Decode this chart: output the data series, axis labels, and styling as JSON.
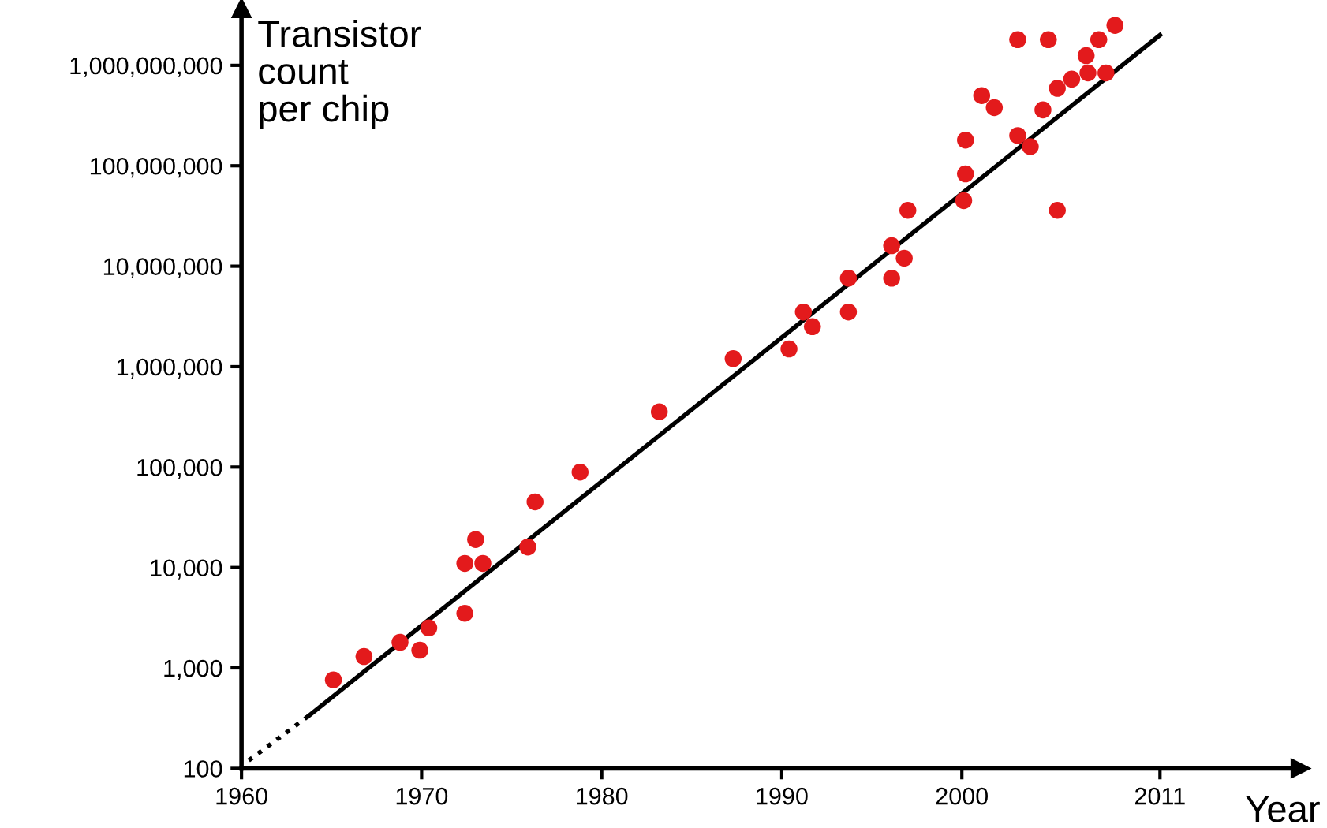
{
  "chart_data": {
    "type": "scatter",
    "xlabel": "Year",
    "ylabel": "Transistor\ncount\nper chip",
    "xlim": [
      1960,
      2018.8
    ],
    "xticks": [
      1960,
      1970,
      1980,
      1990,
      2000,
      2011
    ],
    "ylim": [
      100,
      3700000000
    ],
    "log": true,
    "yticks": [
      100,
      {
        "value": 1000,
        "label": "1,000"
      },
      {
        "value": 10000,
        "label": "10,000"
      },
      {
        "value": 100000,
        "label": "100,000"
      },
      {
        "value": 1000000,
        "label": "1,000,000"
      },
      {
        "value": 10000000,
        "label": "10,000,000"
      },
      {
        "value": 100000000,
        "label": "100,000,000"
      },
      {
        "value": 1000000000,
        "label": "1,000,000,000"
      }
    ],
    "grid": false,
    "legend": false,
    "marker": "circle",
    "series": [
      {
        "color": "#e31a1c",
        "x": [
          1965.1,
          1966.8,
          1968.8,
          1969.9,
          1970.4,
          1972.4,
          1972.4,
          1973.0,
          1973.4,
          1975.9,
          1976.3,
          1978.8,
          1983.2,
          1987.3,
          1990.4,
          1991.2,
          1991.7,
          1993.7,
          1993.7,
          1996.1,
          1996.1,
          1996.8,
          1997.0,
          2000.1,
          2000.2,
          2000.2,
          2001.1,
          2001.8,
          2003.1,
          2004.8,
          2003.1,
          2003.8,
          2004.5,
          2005.3,
          2005.3,
          2006.1,
          2006.9,
          2007.0,
          2007.6,
          2008.0,
          2008.5
        ],
        "values": [
          760,
          1300,
          1800,
          1500,
          2500,
          3500,
          11000,
          19000,
          11000,
          16000,
          45000,
          89000,
          355000,
          1200000,
          1500000,
          3500000,
          2500000,
          3500000,
          7600000,
          7600000,
          16000000,
          12000000,
          36000000,
          45000000,
          83000000,
          180000000,
          500000000,
          380000000,
          1800000000,
          1800000000,
          200000000,
          155000000,
          360000000,
          590000000,
          36000000,
          730000000,
          1250000000,
          840000000,
          1800000000,
          840000000,
          2500000000
        ]
      },
      {
        "type": "line",
        "color": "#000000",
        "line_style": "dotted",
        "marker": "none",
        "x": [
          1960.4,
          1963.7
        ],
        "values": [
          120,
          330
        ]
      },
      {
        "type": "line",
        "color": "#000000",
        "line_style": "solid",
        "marker": "none",
        "x": [
          1963.7,
          2011
        ],
        "values": [
          330,
          2000000000
        ]
      }
    ]
  }
}
